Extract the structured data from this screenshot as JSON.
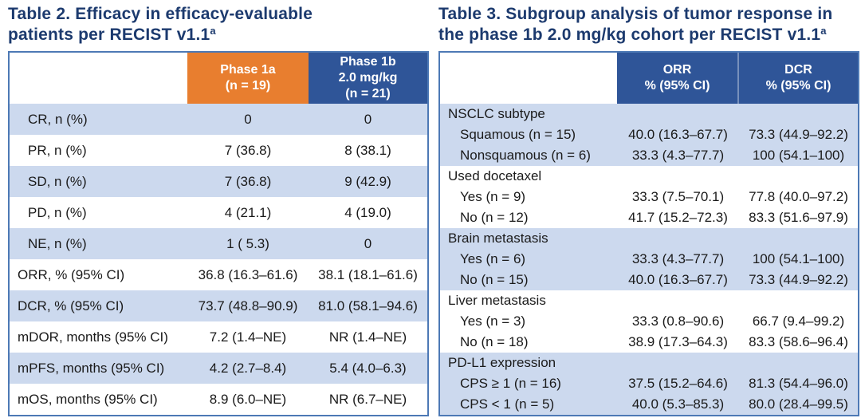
{
  "colors": {
    "title_navy": "#1c3a6e",
    "orange_header": "#e87e2f",
    "blue_header": "#2f5598",
    "row_shade_blue": "#ccd9ee",
    "table_border_blue": "#4d79b5",
    "body_text": "#1a1a1a"
  },
  "table2": {
    "title_line1": "Table 2. Efficacy in efficacy-evaluable",
    "title_line2": "patients per RECIST v1.1",
    "title_superscript": "a",
    "header": {
      "phase1a": {
        "line1": "Phase 1a",
        "line2": "(n = 19)"
      },
      "phase1b": {
        "line1": "Phase 1b",
        "line2": "2.0 mg/kg",
        "line3": "(n = 21)"
      }
    },
    "rows": [
      {
        "label": "CR, n (%)",
        "phase1a": "0",
        "phase1b": "0"
      },
      {
        "label": "PR, n (%)",
        "phase1a": "7 (36.8)",
        "phase1b": "8 (38.1)"
      },
      {
        "label": "SD, n (%)",
        "phase1a": "7 (36.8)",
        "phase1b": "9 (42.9)"
      },
      {
        "label": "PD, n (%)",
        "phase1a": "4 (21.1)",
        "phase1b": "4 (19.0)"
      },
      {
        "label": "NE, n (%)",
        "phase1a": "1 ( 5.3)",
        "phase1b": "0"
      },
      {
        "label": "ORR, % (95% CI)",
        "phase1a": "36.8 (16.3–61.6)",
        "phase1b": "38.1 (18.1–61.6)"
      },
      {
        "label": "DCR, % (95% CI)",
        "phase1a": "73.7 (48.8–90.9)",
        "phase1b": "81.0 (58.1–94.6)"
      },
      {
        "label": "mDOR, months (95% CI)",
        "phase1a": "7.2 (1.4–NE)",
        "phase1b": "NR (1.4–NE)"
      },
      {
        "label": "mPFS, months (95% CI)",
        "phase1a": "4.2 (2.7–8.4)",
        "phase1b": "5.4 (4.0–6.3)"
      },
      {
        "label": "mOS, months (95% CI)",
        "phase1a": "8.9 (6.0–NE)",
        "phase1b": "NR (6.7–NE)"
      }
    ]
  },
  "table3": {
    "title_line1": "Table 3. Subgroup analysis of tumor response in",
    "title_line2": "the phase 1b 2.0 mg/kg cohort per RECIST v1.1",
    "title_superscript": "a",
    "header": {
      "orr": {
        "line1": "ORR",
        "line2": "% (95% CI)"
      },
      "dcr": {
        "line1": "DCR",
        "line2": "% (95% CI)"
      }
    },
    "rows": [
      {
        "label": "NSCLC subtype",
        "orr": "",
        "dcr": ""
      },
      {
        "label": "Squamous (n = 15)",
        "orr": "40.0 (16.3–67.7)",
        "dcr": "73.3 (44.9–92.2)"
      },
      {
        "label": "Nonsquamous (n = 6)",
        "orr": "33.3 (4.3–77.7)",
        "dcr": "100 (54.1–100)"
      },
      {
        "label": "Used docetaxel",
        "orr": "",
        "dcr": ""
      },
      {
        "label": "Yes (n = 9)",
        "orr": "33.3 (7.5–70.1)",
        "dcr": "77.8 (40.0–97.2)"
      },
      {
        "label": "No (n = 12)",
        "orr": "41.7 (15.2–72.3)",
        "dcr": "83.3 (51.6–97.9)"
      },
      {
        "label": "Brain metastasis",
        "orr": "",
        "dcr": ""
      },
      {
        "label": "Yes (n = 6)",
        "orr": "33.3 (4.3–77.7)",
        "dcr": "100 (54.1–100)"
      },
      {
        "label": "No (n = 15)",
        "orr": "40.0 (16.3–67.7)",
        "dcr": "73.3 (44.9–92.2)"
      },
      {
        "label": "Liver metastasis",
        "orr": "",
        "dcr": ""
      },
      {
        "label": "Yes (n = 3)",
        "orr": "33.3 (0.8–90.6)",
        "dcr": "66.7 (9.4–99.2)"
      },
      {
        "label": "No (n = 18)",
        "orr": "38.9 (17.3–64.3)",
        "dcr": "83.3 (58.6–96.4)"
      },
      {
        "label": "PD-L1 expression",
        "orr": "",
        "dcr": ""
      },
      {
        "label": "CPS ≥ 1 (n = 16)",
        "orr": "37.5 (15.2–64.6)",
        "dcr": "81.3 (54.4–96.0)"
      },
      {
        "label": "CPS < 1 (n = 5)",
        "orr": "40.0 (5.3–85.3)",
        "dcr": "80.0 (28.4–99.5)"
      }
    ]
  }
}
